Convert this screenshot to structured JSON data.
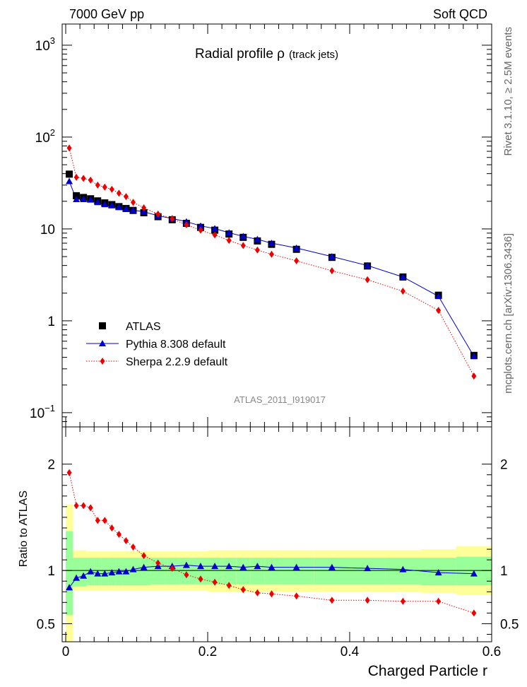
{
  "header": {
    "left": "7000 GeV pp",
    "right": "Soft QCD"
  },
  "side_labels": {
    "rivet": "Rivet 3.1.10, ≥ 2.5M events",
    "mcplots": "mcplots.cern.ch [arXiv:1306.3436]"
  },
  "chart_data": [
    {
      "type": "scatter",
      "panel": "main",
      "title_main": "Radial profile  ρ",
      "title_sub": "(track jets)",
      "watermark": "ATLAS_2011_I919017",
      "xlabel": "Charged Particle r",
      "ylabel": "",
      "xlim": [
        -0.005,
        0.6
      ],
      "ylim": [
        0.07,
        1700
      ],
      "yscale": "log",
      "y_ticks": [
        {
          "value": 0.1,
          "mantissa": "10",
          "exp": "−1"
        },
        {
          "value": 1,
          "mantissa": "1",
          "exp": ""
        },
        {
          "value": 10,
          "mantissa": "10",
          "exp": ""
        },
        {
          "value": 100,
          "mantissa": "10",
          "exp": "2"
        },
        {
          "value": 1000,
          "mantissa": "10",
          "exp": "3"
        }
      ],
      "legend_position": "middle-left",
      "x": [
        0.005,
        0.015,
        0.025,
        0.035,
        0.045,
        0.055,
        0.065,
        0.075,
        0.085,
        0.095,
        0.11,
        0.13,
        0.15,
        0.17,
        0.19,
        0.21,
        0.23,
        0.25,
        0.27,
        0.29,
        0.325,
        0.375,
        0.425,
        0.475,
        0.525,
        0.575
      ],
      "series": [
        {
          "name": "ATLAS",
          "marker": "square",
          "color": "#000000",
          "values": [
            39.5,
            23.0,
            22.0,
            21.3,
            20.2,
            19.2,
            18.4,
            17.5,
            16.7,
            15.9,
            15.0,
            13.6,
            12.6,
            11.5,
            10.4,
            9.7,
            8.8,
            8.1,
            7.4,
            6.8,
            6.0,
            4.9,
            3.95,
            3.0,
            1.9,
            0.42
          ]
        },
        {
          "name": "Pythia 8.308 default",
          "marker": "triangle",
          "color": "#0000cc",
          "line": "solid",
          "values": [
            33.0,
            21.0,
            21.0,
            20.8,
            19.5,
            18.5,
            18.0,
            17.3,
            16.6,
            16.0,
            15.4,
            13.9,
            13.0,
            12.0,
            10.8,
            10.1,
            9.1,
            8.3,
            7.7,
            7.0,
            6.2,
            5.0,
            4.0,
            3.0,
            1.85,
            0.41
          ]
        },
        {
          "name": "Sherpa 2.2.9 default",
          "marker": "diamond",
          "color": "#ee0000",
          "line": "dotted",
          "values": [
            76.0,
            36.5,
            35.5,
            34.0,
            30.0,
            28.5,
            27.0,
            24.5,
            22.5,
            19.5,
            17.0,
            14.5,
            12.9,
            11.1,
            9.7,
            8.6,
            7.5,
            6.6,
            5.9,
            5.3,
            4.5,
            3.5,
            2.8,
            2.1,
            1.3,
            0.25
          ]
        }
      ]
    },
    {
      "type": "scatter",
      "panel": "ratio",
      "xlabel": "Charged Particle r",
      "ylabel": "Ratio to ATLAS",
      "xlim": [
        -0.005,
        0.6
      ],
      "ylim": [
        0.33,
        2.35
      ],
      "y_ticks": [
        0.5,
        1,
        2
      ],
      "y_tick_labels": [
        "0.5",
        "1",
        "2"
      ],
      "x_ticks": [
        0,
        0.2,
        0.4,
        0.6
      ],
      "x_tick_labels": [
        "0",
        "0.2",
        "0.4",
        "0.6"
      ],
      "band_edges": [
        0.0,
        0.01,
        0.02,
        0.03,
        0.04,
        0.05,
        0.06,
        0.07,
        0.08,
        0.09,
        0.1,
        0.12,
        0.14,
        0.16,
        0.18,
        0.2,
        0.22,
        0.24,
        0.26,
        0.28,
        0.3,
        0.35,
        0.4,
        0.45,
        0.5,
        0.55,
        0.6
      ],
      "band_inner": [
        [
          0.58,
          1.37
        ],
        [
          0.85,
          1.12
        ],
        [
          0.85,
          1.12
        ],
        [
          0.86,
          1.12
        ],
        [
          0.86,
          1.12
        ],
        [
          0.86,
          1.12
        ],
        [
          0.86,
          1.12
        ],
        [
          0.86,
          1.12
        ],
        [
          0.86,
          1.12
        ],
        [
          0.86,
          1.12
        ],
        [
          0.86,
          1.12
        ],
        [
          0.87,
          1.12
        ],
        [
          0.87,
          1.12
        ],
        [
          0.87,
          1.12
        ],
        [
          0.87,
          1.12
        ],
        [
          0.87,
          1.12
        ],
        [
          0.87,
          1.12
        ],
        [
          0.87,
          1.12
        ],
        [
          0.87,
          1.12
        ],
        [
          0.87,
          1.12
        ],
        [
          0.87,
          1.12
        ],
        [
          0.87,
          1.12
        ],
        [
          0.87,
          1.12
        ],
        [
          0.87,
          1.12
        ],
        [
          0.86,
          1.12
        ],
        [
          0.86,
          1.13
        ]
      ],
      "band_outer": [
        [
          0.28,
          1.62
        ],
        [
          0.81,
          1.19
        ],
        [
          0.81,
          1.19
        ],
        [
          0.81,
          1.18
        ],
        [
          0.81,
          1.18
        ],
        [
          0.81,
          1.18
        ],
        [
          0.81,
          1.18
        ],
        [
          0.81,
          1.18
        ],
        [
          0.81,
          1.18
        ],
        [
          0.81,
          1.18
        ],
        [
          0.81,
          1.18
        ],
        [
          0.81,
          1.18
        ],
        [
          0.81,
          1.18
        ],
        [
          0.81,
          1.18
        ],
        [
          0.81,
          1.18
        ],
        [
          0.8,
          1.19
        ],
        [
          0.8,
          1.19
        ],
        [
          0.8,
          1.19
        ],
        [
          0.8,
          1.19
        ],
        [
          0.8,
          1.19
        ],
        [
          0.8,
          1.19
        ],
        [
          0.8,
          1.19
        ],
        [
          0.8,
          1.19
        ],
        [
          0.8,
          1.19
        ],
        [
          0.79,
          1.2
        ],
        [
          0.77,
          1.23
        ]
      ],
      "series": [
        {
          "name": "Pythia 8.308 default",
          "marker": "triangle",
          "color": "#0000cc",
          "values": [
            0.84,
            0.93,
            0.95,
            0.99,
            0.97,
            0.97,
            0.98,
            0.99,
            0.99,
            1.01,
            1.03,
            1.04,
            1.04,
            1.05,
            1.04,
            1.04,
            1.04,
            1.03,
            1.04,
            1.03,
            1.03,
            1.03,
            1.02,
            1.01,
            0.98,
            0.97
          ]
        },
        {
          "name": "Sherpa 2.2.9 default",
          "marker": "diamond",
          "color": "#ee0000",
          "values": [
            1.92,
            1.61,
            1.61,
            1.59,
            1.47,
            1.47,
            1.4,
            1.34,
            1.28,
            1.22,
            1.14,
            1.07,
            1.02,
            0.96,
            0.92,
            0.89,
            0.86,
            0.82,
            0.79,
            0.78,
            0.76,
            0.72,
            0.72,
            0.71,
            0.71,
            0.6
          ]
        }
      ]
    }
  ]
}
